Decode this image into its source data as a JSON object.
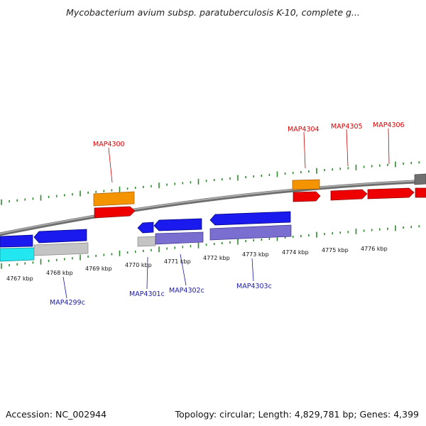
{
  "title": "Mycobacterium avium subsp. paratuberculosis K-10, complete g...",
  "footer": {
    "accession": "Accession: NC_002944",
    "summary": "Topology: circular; Length: 4,829,781 bp; Genes: 4,399"
  },
  "colors": {
    "background": "#ffffff",
    "backbone": "#8a8a8a",
    "tick": "#2e8b2e",
    "forward_gene": "#ee0000",
    "forward_label": "#dd0000",
    "reverse_gene": "#1a1aee",
    "reverse_label": "#1a1aaa",
    "orange_gene": "#f39400",
    "purple_gene": "#7a6fd0",
    "light_gray_gene": "#c4c4c4",
    "cyan_gene": "#22e6f0",
    "dark_gray_gene": "#707070"
  },
  "kbp_labels": [
    "4767 kbp",
    "4768 kbp",
    "4769 kbp",
    "4770 kbp",
    "4771 kbp",
    "4772 kbp",
    "4773 kbp",
    "4774 kbp",
    "4775 kbp",
    "4776 kbp"
  ],
  "gene_labels_forward": [
    "MAP4300",
    "MAP4304",
    "MAP4305",
    "MAP4306"
  ],
  "gene_labels_reverse": [
    "MAP4299c",
    "MAP4301c",
    "MAP4302c",
    "MAP4303c"
  ]
}
